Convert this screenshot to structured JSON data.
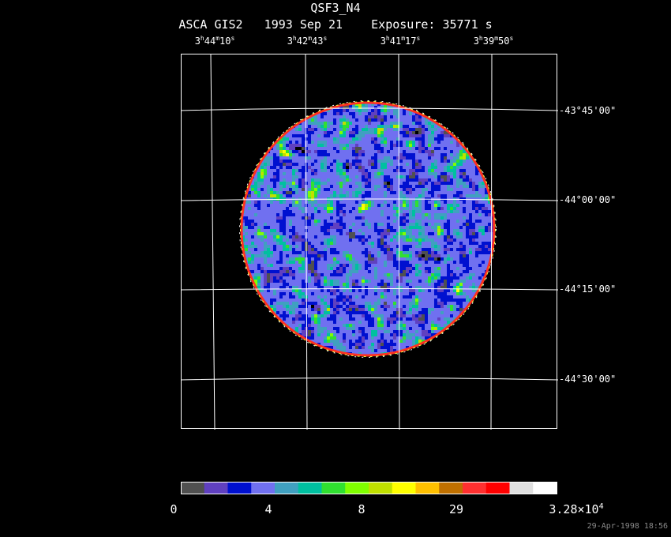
{
  "title": "QSF3_N4",
  "subtitle": "ASCA GIS2   1993 Sep 21    Exposure: 35771 s",
  "ra_labels": [
    {
      "h": "3",
      "m": "44",
      "s": "10"
    },
    {
      "h": "3",
      "m": "42",
      "s": "43"
    },
    {
      "h": "3",
      "m": "41",
      "s": "17"
    },
    {
      "h": "3",
      "m": "39",
      "s": "50"
    }
  ],
  "dec_labels": [
    "-43°45'00\"",
    "-44°00'00\"",
    "-44°15'00\"",
    "-44°30'00\""
  ],
  "colorbar": {
    "colors": [
      "#505050",
      "#6040c0",
      "#0010d0",
      "#7070f0",
      "#40a0c0",
      "#00c0a0",
      "#30e030",
      "#80ff00",
      "#c0e000",
      "#ffff00",
      "#ffc000",
      "#c07000",
      "#ff3030",
      "#ff0000",
      "#e0e0e0",
      "#ffffff"
    ],
    "labels": [
      "0",
      "4",
      "8",
      "29",
      "3.28×10"
    ],
    "exponent": "4"
  },
  "timestamp": "29-Apr-1998 18:56"
}
